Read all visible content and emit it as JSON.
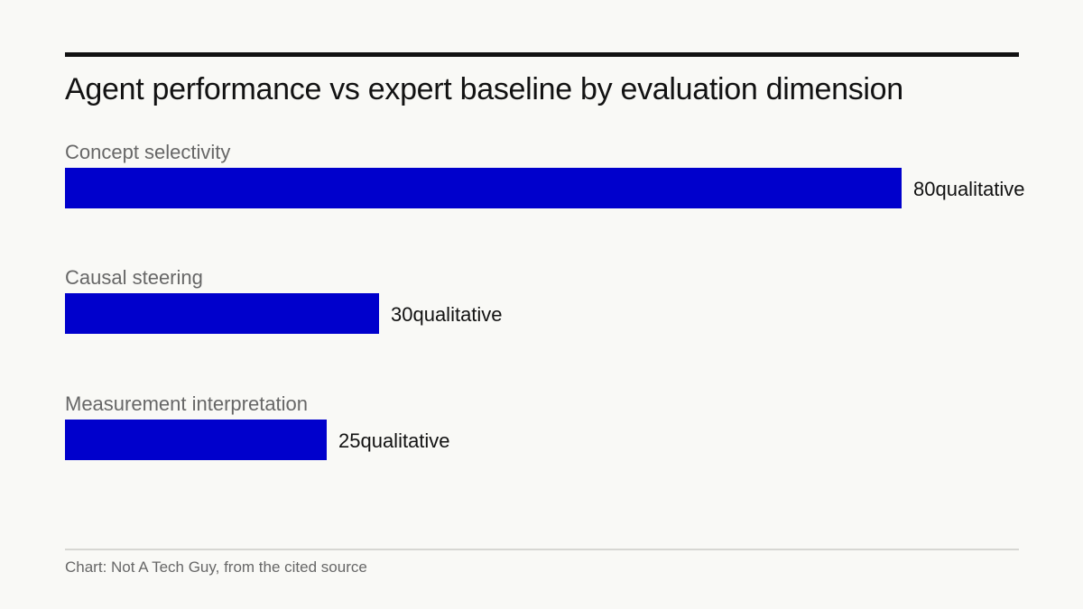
{
  "chart_data": {
    "type": "bar",
    "orientation": "horizontal",
    "title": "Agent performance vs expert baseline by evaluation dimension",
    "categories": [
      "Concept selectivity",
      "Causal steering",
      "Measurement interpretation"
    ],
    "values": [
      80,
      30,
      25
    ],
    "value_suffix": "qualitative",
    "value_labels": [
      "80qualitative",
      "30qualitative",
      "25qualitative"
    ],
    "xlim": [
      0,
      80
    ],
    "grid": false,
    "legend": "none",
    "bar_color": "#0000cc"
  },
  "source": "Chart: Not A Tech Guy, from the cited source"
}
